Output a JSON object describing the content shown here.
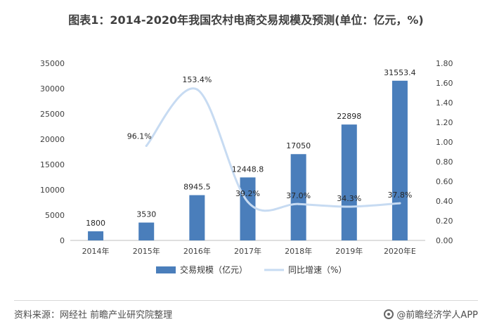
{
  "title": "图表1：2014-2020年我国农村电商交易规模及预测(单位：亿元，%)",
  "footer": {
    "source": "资料来源：网经社 前瞻产业研究院整理",
    "brand": "@前瞻经济学人APP"
  },
  "chart_data": {
    "type": "bar",
    "categories": [
      "2014年",
      "2015年",
      "2016年",
      "2017年",
      "2018年",
      "2019年",
      "2020年E"
    ],
    "series": [
      {
        "name": "交易规模（亿元）",
        "type": "bar",
        "axis": "left",
        "values": [
          1800,
          3530,
          8945.5,
          12448.8,
          17050,
          22898,
          31553.4
        ],
        "labels": [
          "1800",
          "3530",
          "8945.5",
          "12448.8",
          "17050",
          "22898",
          "31553.4"
        ],
        "color": "#4a7ebb"
      },
      {
        "name": "同比增速（%）",
        "type": "line",
        "axis": "right",
        "values": [
          null,
          0.961,
          1.534,
          0.392,
          0.37,
          0.343,
          0.378
        ],
        "labels": [
          "",
          "96.1%",
          "153.4%",
          "39.2%",
          "37.0%",
          "34.3%",
          "37.8%"
        ],
        "color": "#c7dbf2"
      }
    ],
    "y_left": {
      "min": 0,
      "max": 35000,
      "ticks": [
        "0",
        "5000",
        "10000",
        "15000",
        "20000",
        "25000",
        "30000",
        "35000"
      ]
    },
    "y_right": {
      "min": 0,
      "max": 1.8,
      "ticks": [
        "0.00",
        "0.20",
        "0.40",
        "0.60",
        "0.80",
        "1.00",
        "1.20",
        "1.40",
        "1.60",
        "1.80"
      ]
    },
    "grid": false,
    "legend": "bottom"
  }
}
